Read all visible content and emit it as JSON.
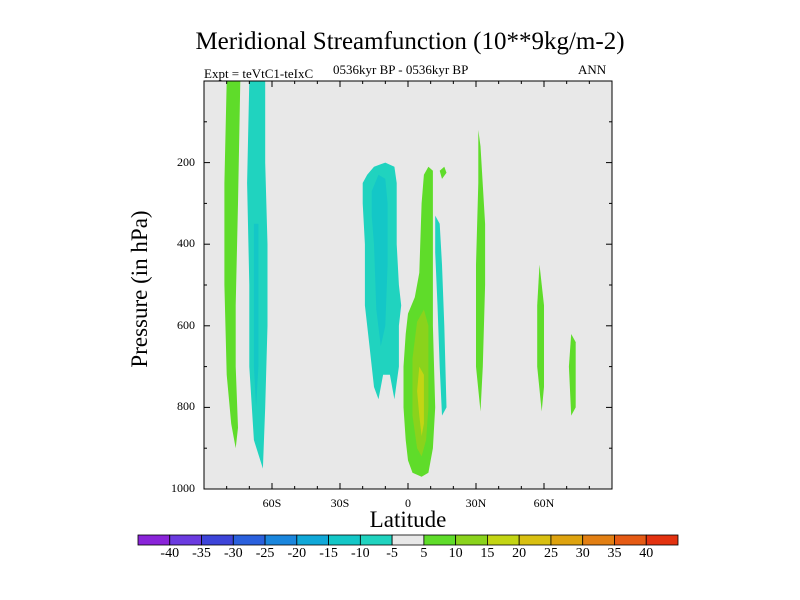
{
  "chart_data": {
    "type": "contour",
    "title": "Meridional Streamfunction (10**9kg/m-2)",
    "subtitle_left": "Expt = teVtC1-teIxC",
    "subtitle_center": "0536kyr BP - 0536kyr BP",
    "subtitle_right": "ANN",
    "xlabel": "Latitude",
    "ylabel": "Pressure (in hPa)",
    "xlim": [
      -90,
      90
    ],
    "ylim": [
      0,
      1000
    ],
    "x_ticks": [
      {
        "value": -60,
        "label": "60S"
      },
      {
        "value": -30,
        "label": "30S"
      },
      {
        "value": 0,
        "label": "0"
      },
      {
        "value": 30,
        "label": "30N"
      },
      {
        "value": 60,
        "label": "60N"
      }
    ],
    "y_ticks": [
      {
        "value": 200,
        "label": "200"
      },
      {
        "value": 400,
        "label": "400"
      },
      {
        "value": 600,
        "label": "600"
      },
      {
        "value": 800,
        "label": "800"
      },
      {
        "value": 1000,
        "label": "1000"
      }
    ],
    "background_color": "#e8e8e8",
    "regions": [
      {
        "sign": "positive",
        "level": 5,
        "color": "#5fdc2a",
        "points": [
          [
            -80,
            0
          ],
          [
            -74,
            0
          ],
          [
            -75,
            300
          ],
          [
            -76,
            550
          ],
          [
            -76,
            700
          ],
          [
            -75,
            850
          ],
          [
            -76,
            900
          ],
          [
            -78,
            840
          ],
          [
            -80,
            720
          ],
          [
            -81,
            500
          ],
          [
            -81,
            250
          ]
        ]
      },
      {
        "sign": "negative",
        "level": -5,
        "color": "#20d3bf",
        "points": [
          [
            -70,
            0
          ],
          [
            -63,
            0
          ],
          [
            -63,
            200
          ],
          [
            -62,
            400
          ],
          [
            -62,
            600
          ],
          [
            -63,
            800
          ],
          [
            -64,
            950
          ],
          [
            -68,
            880
          ],
          [
            -70,
            700
          ],
          [
            -70,
            500
          ],
          [
            -71,
            250
          ]
        ]
      },
      {
        "sign": "negative",
        "level": -10,
        "color": "#14c7c7",
        "points": [
          [
            -68,
            350
          ],
          [
            -66,
            350
          ],
          [
            -66,
            700
          ],
          [
            -67,
            800
          ],
          [
            -68,
            700
          ]
        ]
      },
      {
        "sign": "negative",
        "level": -5,
        "color": "#20d3bf",
        "points": [
          [
            -20,
            250
          ],
          [
            -18,
            230
          ],
          [
            -15,
            210
          ],
          [
            -10,
            200
          ],
          [
            -6,
            210
          ],
          [
            -5,
            250
          ],
          [
            -5,
            400
          ],
          [
            -4,
            500
          ],
          [
            -3,
            550
          ],
          [
            -4,
            600
          ],
          [
            -4,
            700
          ],
          [
            -6,
            780
          ],
          [
            -8,
            720
          ],
          [
            -11,
            720
          ],
          [
            -13,
            780
          ],
          [
            -15,
            750
          ],
          [
            -17,
            650
          ],
          [
            -19,
            550
          ],
          [
            -19,
            400
          ],
          [
            -20,
            300
          ]
        ]
      },
      {
        "sign": "negative",
        "level": -10,
        "color": "#14c7c7",
        "points": [
          [
            -16,
            270
          ],
          [
            -13,
            230
          ],
          [
            -10,
            240
          ],
          [
            -9,
            300
          ],
          [
            -9,
            450
          ],
          [
            -10,
            600
          ],
          [
            -12,
            650
          ],
          [
            -14,
            560
          ],
          [
            -15,
            400
          ],
          [
            -16,
            330
          ]
        ]
      },
      {
        "sign": "positive",
        "level": 5,
        "color": "#5fdc2a",
        "points": [
          [
            7,
            230
          ],
          [
            9,
            210
          ],
          [
            11,
            220
          ],
          [
            11,
            400
          ],
          [
            11,
            600
          ],
          [
            12,
            800
          ],
          [
            11,
            900
          ],
          [
            9,
            960
          ],
          [
            6,
            970
          ],
          [
            2,
            960
          ],
          [
            0,
            930
          ],
          [
            -1,
            880
          ],
          [
            -2,
            800
          ],
          [
            -2,
            700
          ],
          [
            -1,
            620
          ],
          [
            0,
            570
          ],
          [
            3,
            530
          ],
          [
            5,
            470
          ],
          [
            6,
            300
          ]
        ]
      },
      {
        "sign": "positive",
        "level": 10,
        "color": "#8ad31c",
        "points": [
          [
            4,
            590
          ],
          [
            7,
            560
          ],
          [
            9,
            600
          ],
          [
            9,
            800
          ],
          [
            8,
            880
          ],
          [
            6,
            920
          ],
          [
            4,
            900
          ],
          [
            2,
            820
          ],
          [
            2,
            680
          ]
        ]
      },
      {
        "sign": "positive",
        "level": 15,
        "color": "#c3d514",
        "points": [
          [
            5,
            700
          ],
          [
            7,
            720
          ],
          [
            7,
            840
          ],
          [
            6,
            870
          ],
          [
            5,
            820
          ],
          [
            4,
            760
          ]
        ]
      },
      {
        "sign": "negative",
        "level": -5,
        "color": "#20d3bf",
        "points": [
          [
            12,
            330
          ],
          [
            14,
            350
          ],
          [
            15,
            450
          ],
          [
            16,
            600
          ],
          [
            17,
            800
          ],
          [
            15,
            820
          ],
          [
            14,
            700
          ],
          [
            13,
            550
          ],
          [
            12,
            420
          ]
        ]
      },
      {
        "sign": "positive",
        "level": 5,
        "color": "#5fdc2a",
        "points": [
          [
            14,
            220
          ],
          [
            16,
            210
          ],
          [
            17,
            225
          ],
          [
            15,
            240
          ]
        ]
      },
      {
        "sign": "positive",
        "level": 5,
        "color": "#5fdc2a",
        "points": [
          [
            31,
            120
          ],
          [
            32,
            160
          ],
          [
            34,
            350
          ],
          [
            34,
            500
          ],
          [
            33,
            700
          ],
          [
            32,
            810
          ],
          [
            30,
            700
          ],
          [
            30,
            450
          ],
          [
            31,
            250
          ]
        ]
      },
      {
        "sign": "positive",
        "level": 5,
        "color": "#5fdc2a",
        "points": [
          [
            58,
            450
          ],
          [
            60,
            550
          ],
          [
            60,
            750
          ],
          [
            59,
            810
          ],
          [
            57,
            700
          ],
          [
            57,
            550
          ]
        ]
      },
      {
        "sign": "positive",
        "level": 5,
        "color": "#5fdc2a",
        "points": [
          [
            72,
            620
          ],
          [
            74,
            640
          ],
          [
            74,
            800
          ],
          [
            72,
            820
          ],
          [
            71,
            700
          ]
        ]
      }
    ],
    "colorbar": {
      "labels": [
        "-40",
        "-35",
        "-30",
        "-25",
        "-20",
        "-15",
        "-10",
        "-5",
        "5",
        "10",
        "15",
        "20",
        "25",
        "30",
        "35",
        "40"
      ],
      "colors": [
        "#8a24d9",
        "#6b3be0",
        "#3d44d9",
        "#2a60dd",
        "#1a86dd",
        "#10a8d8",
        "#14c7c7",
        "#20d3bf",
        "#e8e8e8",
        "#5fdc2a",
        "#8ad31c",
        "#c3d514",
        "#d9c011",
        "#dea30f",
        "#e27f13",
        "#e55a14",
        "#e33210"
      ]
    }
  }
}
